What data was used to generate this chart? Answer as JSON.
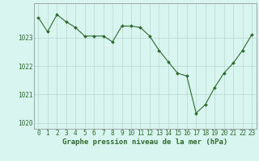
{
  "hours": [
    0,
    1,
    2,
    3,
    4,
    5,
    6,
    7,
    8,
    9,
    10,
    11,
    12,
    13,
    14,
    15,
    16,
    17,
    18,
    19,
    20,
    21,
    22,
    23
  ],
  "pressure": [
    1023.7,
    1023.2,
    1023.8,
    1023.55,
    1023.35,
    1023.05,
    1023.05,
    1023.05,
    1022.85,
    1023.4,
    1023.4,
    1023.35,
    1023.05,
    1022.55,
    1022.15,
    1021.75,
    1021.65,
    1020.35,
    1020.65,
    1021.25,
    1021.75,
    1022.1,
    1022.55,
    1023.1
  ],
  "line_color": "#2d6a2d",
  "marker": "D",
  "marker_size": 2.0,
  "bg_color": "#d9f5f0",
  "grid_color": "#b8d8d0",
  "ylim": [
    1019.8,
    1024.2
  ],
  "yticks": [
    1020,
    1021,
    1022,
    1023
  ],
  "xticks": [
    0,
    1,
    2,
    3,
    4,
    5,
    6,
    7,
    8,
    9,
    10,
    11,
    12,
    13,
    14,
    15,
    16,
    17,
    18,
    19,
    20,
    21,
    22,
    23
  ],
  "xlabel": "Graphe pression niveau de la mer (hPa)",
  "xlabel_fontsize": 6.5,
  "tick_fontsize": 5.5,
  "axis_color": "#2d6a2d",
  "spine_color": "#888888"
}
